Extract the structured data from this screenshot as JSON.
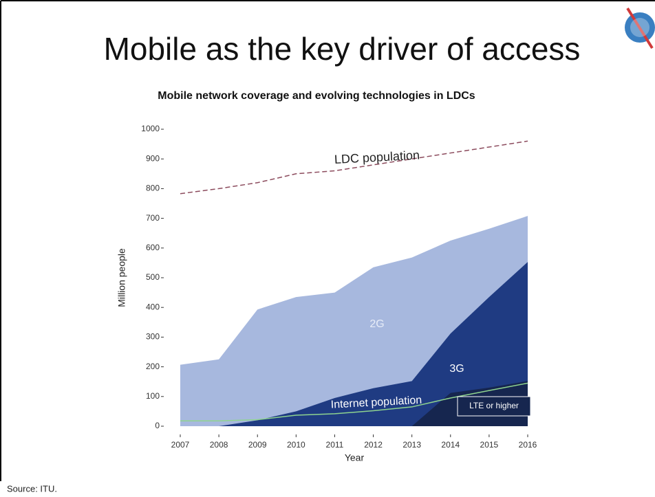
{
  "title": "Mobile as the key driver of access",
  "source": "Source:  ITU.",
  "chart_data": {
    "type": "area",
    "title": "Mobile network coverage and evolving technologies in LDCs",
    "x_label": "Year",
    "y_label": "Million people",
    "x": [
      2007,
      2008,
      2009,
      2010,
      2011,
      2012,
      2013,
      2014,
      2015,
      2016
    ],
    "xlim": [
      2007,
      2016
    ],
    "xticks": [
      2007,
      2008,
      2009,
      2010,
      2011,
      2012,
      2013,
      2014,
      2015,
      2016
    ],
    "ylim": [
      0,
      1000
    ],
    "yticks": [
      0,
      100,
      200,
      300,
      400,
      500,
      600,
      700,
      800,
      900,
      1000
    ],
    "series": [
      {
        "name": "2G",
        "color": "#a7b8de",
        "style": "area",
        "values": [
          207,
          225,
          393,
          435,
          450,
          535,
          568,
          625,
          665,
          708
        ]
      },
      {
        "name": "3G",
        "color": "#1f3b82",
        "style": "area",
        "values": [
          0,
          0,
          20,
          50,
          95,
          128,
          152,
          312,
          435,
          553
        ]
      },
      {
        "name": "LTE or higher",
        "color": "#16264f",
        "style": "area",
        "values": [
          0,
          0,
          0,
          0,
          0,
          0,
          0,
          112,
          130,
          152
        ]
      },
      {
        "name": "LDC population",
        "color": "#8b4a5c",
        "style": "dashed",
        "values": [
          783,
          800,
          820,
          850,
          860,
          880,
          900,
          920,
          940,
          960
        ]
      },
      {
        "name": "Internet population",
        "color": "#8fd48f",
        "style": "line",
        "values": [
          18,
          18,
          22,
          37,
          42,
          52,
          65,
          95,
          120,
          145
        ]
      }
    ]
  }
}
